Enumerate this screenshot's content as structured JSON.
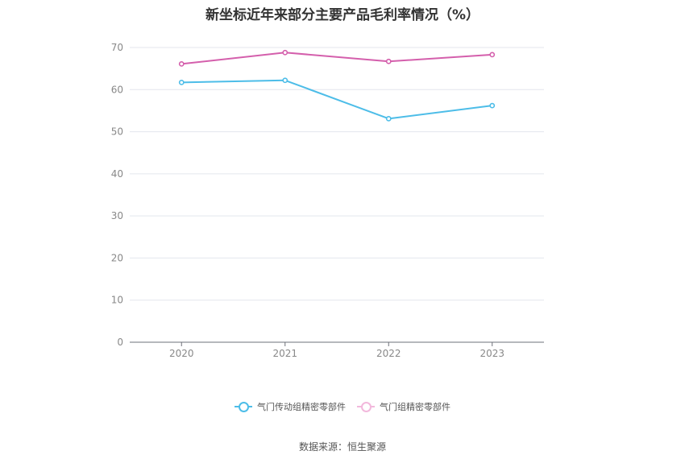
{
  "title": "新坐标近年来部分主要产品毛利率情况（%）",
  "source": "数据来源：恒生聚源",
  "chart_data": {
    "type": "line",
    "title": "新坐标近年来部分主要产品毛利率情况（%）",
    "x": [
      "2020",
      "2021",
      "2022",
      "2023"
    ],
    "y_ticks": [
      0,
      10,
      20,
      30,
      40,
      50,
      60,
      70
    ],
    "ylim": [
      0,
      70
    ],
    "grid": true,
    "legend_position": "bottom",
    "series": [
      {
        "name": "气门传动组精密零部件",
        "values": [
          61.7,
          62.2,
          53.1,
          56.2
        ],
        "color": "#4dbde8"
      },
      {
        "name": "气门组精密零部件",
        "values": [
          66.1,
          68.8,
          66.7,
          68.3
        ],
        "color": "#d45fac"
      }
    ]
  }
}
